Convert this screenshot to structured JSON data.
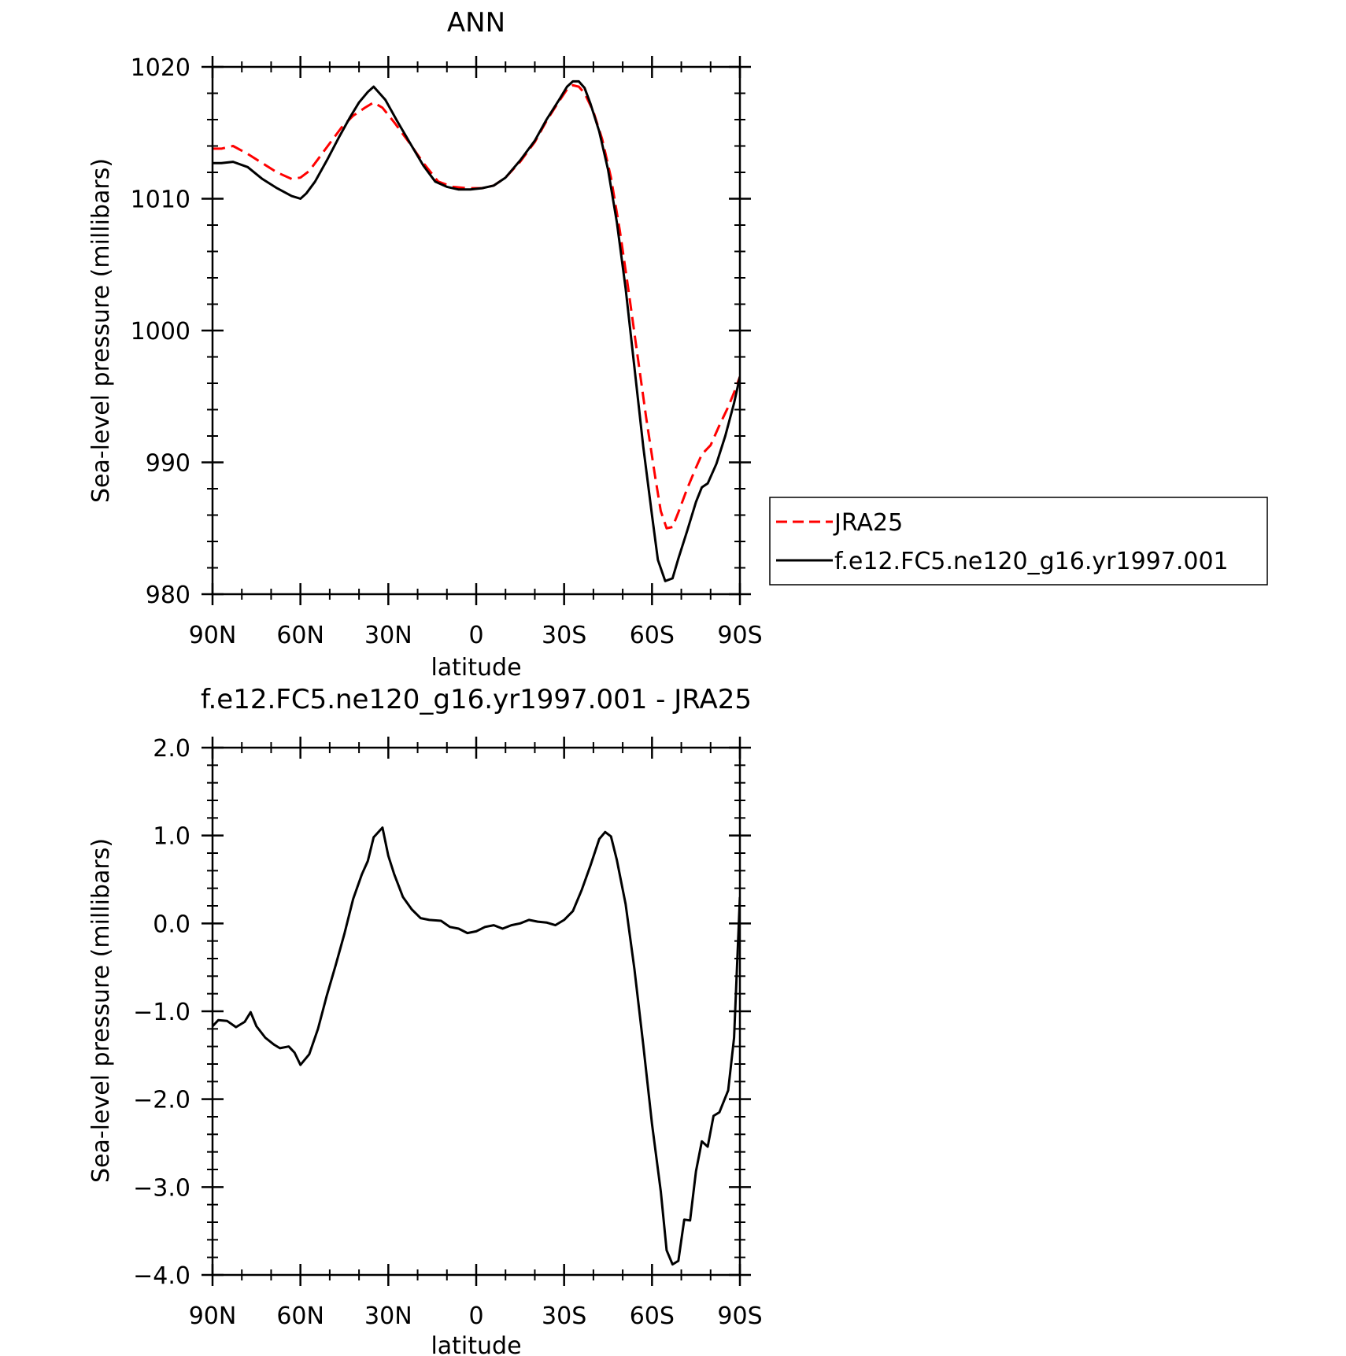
{
  "chart_data": [
    {
      "type": "line",
      "title": "ANN",
      "xlabel": "latitude",
      "ylabel": "Sea-level pressure (millibars)",
      "xlim": [
        -90,
        90
      ],
      "ylim": [
        980,
        1020
      ],
      "x_tick_values": [
        -90,
        -60,
        -30,
        0,
        30,
        60,
        90
      ],
      "x_tick_labels": [
        "90N",
        "60N",
        "30N",
        "0",
        "30S",
        "60S",
        "90S"
      ],
      "y_tick_values": [
        980,
        990,
        1000,
        1010,
        1020
      ],
      "y_tick_labels": [
        "980",
        "990",
        "1000",
        "1010",
        "1020"
      ],
      "legend_position": "right",
      "series": [
        {
          "name": "JRA25",
          "color": "#ff0000",
          "dash": "dashed",
          "points": [
            [
              -90,
              1013.8
            ],
            [
              -87,
              1013.8
            ],
            [
              -83,
              1014.0
            ],
            [
              -78,
              1013.4
            ],
            [
              -73,
              1012.7
            ],
            [
              -68,
              1012.0
            ],
            [
              -63,
              1011.5
            ],
            [
              -60,
              1011.6
            ],
            [
              -57,
              1012.1
            ],
            [
              -54,
              1013.0
            ],
            [
              -50,
              1014.2
            ],
            [
              -46,
              1015.4
            ],
            [
              -42,
              1016.3
            ],
            [
              -38,
              1016.9
            ],
            [
              -35,
              1017.3
            ],
            [
              -32,
              1016.9
            ],
            [
              -28,
              1015.8
            ],
            [
              -23,
              1014.3
            ],
            [
              -18,
              1012.7
            ],
            [
              -13,
              1011.3
            ],
            [
              -8,
              1010.9
            ],
            [
              -3,
              1010.8
            ],
            [
              2,
              1010.8
            ],
            [
              6,
              1011.0
            ],
            [
              10,
              1011.6
            ],
            [
              15,
              1012.8
            ],
            [
              20,
              1014.3
            ],
            [
              24,
              1015.9
            ],
            [
              28,
              1017.3
            ],
            [
              31,
              1018.3
            ],
            [
              33,
              1018.6
            ],
            [
              35,
              1018.5
            ],
            [
              37,
              1018.0
            ],
            [
              40,
              1016.6
            ],
            [
              43,
              1014.5
            ],
            [
              46,
              1011.6
            ],
            [
              49,
              1007.6
            ],
            [
              52,
              1003.0
            ],
            [
              55,
              998.2
            ],
            [
              58,
              993.4
            ],
            [
              61,
              989.0
            ],
            [
              63,
              986.3
            ],
            [
              65,
              985.0
            ],
            [
              67,
              985.1
            ],
            [
              69,
              986.2
            ],
            [
              72,
              988.0
            ],
            [
              75,
              989.6
            ],
            [
              77,
              990.6
            ],
            [
              80,
              991.3
            ],
            [
              83,
              992.8
            ],
            [
              86,
              994.2
            ],
            [
              88,
              995.3
            ],
            [
              90,
              996.5
            ]
          ]
        },
        {
          "name": "f.e12.FC5.ne120_g16.yr1997.001",
          "color": "#000000",
          "dash": "solid",
          "points": [
            [
              -90,
              1012.7
            ],
            [
              -87,
              1012.7
            ],
            [
              -83,
              1012.8
            ],
            [
              -78,
              1012.4
            ],
            [
              -73,
              1011.5
            ],
            [
              -68,
              1010.8
            ],
            [
              -63,
              1010.2
            ],
            [
              -60,
              1010.0
            ],
            [
              -58,
              1010.4
            ],
            [
              -55,
              1011.3
            ],
            [
              -51,
              1012.9
            ],
            [
              -47,
              1014.6
            ],
            [
              -43,
              1016.2
            ],
            [
              -40,
              1017.3
            ],
            [
              -37,
              1018.1
            ],
            [
              -35,
              1018.5
            ],
            [
              -31,
              1017.5
            ],
            [
              -27,
              1015.9
            ],
            [
              -22,
              1014.0
            ],
            [
              -18,
              1012.5
            ],
            [
              -14,
              1011.3
            ],
            [
              -10,
              1010.9
            ],
            [
              -6,
              1010.7
            ],
            [
              -2,
              1010.7
            ],
            [
              2,
              1010.8
            ],
            [
              6,
              1011.0
            ],
            [
              10,
              1011.6
            ],
            [
              15,
              1012.9
            ],
            [
              20,
              1014.4
            ],
            [
              24,
              1016.0
            ],
            [
              28,
              1017.4
            ],
            [
              31,
              1018.5
            ],
            [
              33,
              1018.9
            ],
            [
              35,
              1018.9
            ],
            [
              37,
              1018.4
            ],
            [
              39,
              1017.2
            ],
            [
              42,
              1015.1
            ],
            [
              45,
              1012.2
            ],
            [
              48,
              1008.2
            ],
            [
              51,
              1003.2
            ],
            [
              54,
              997.2
            ],
            [
              57,
              991.2
            ],
            [
              60,
              986.0
            ],
            [
              62,
              982.6
            ],
            [
              64.5,
              981.0
            ],
            [
              67,
              981.2
            ],
            [
              69,
              982.7
            ],
            [
              72,
              984.8
            ],
            [
              75,
              987.0
            ],
            [
              77,
              988.1
            ],
            [
              79,
              988.4
            ],
            [
              82,
              989.9
            ],
            [
              85,
              992.0
            ],
            [
              88,
              994.5
            ],
            [
              90,
              996.5
            ]
          ]
        }
      ]
    },
    {
      "type": "line",
      "title": "f.e12.FC5.ne120_g16.yr1997.001 - JRA25",
      "xlabel": "latitude",
      "ylabel": "Sea-level pressure (millibars)",
      "xlim": [
        -90,
        90
      ],
      "ylim": [
        -4.0,
        2.0
      ],
      "x_tick_values": [
        -90,
        -60,
        -30,
        0,
        30,
        60,
        90
      ],
      "x_tick_labels": [
        "90N",
        "60N",
        "30N",
        "0",
        "30S",
        "60S",
        "90S"
      ],
      "y_tick_values": [
        -4.0,
        -3.0,
        -2.0,
        -1.0,
        0.0,
        1.0,
        2.0
      ],
      "y_tick_labels": [
        "-4.0",
        "-3.0",
        "-2.0",
        "-1.0",
        "0.0",
        "1.0",
        "2.0"
      ],
      "series": [
        {
          "color": "#000000",
          "dash": "solid",
          "points": [
            [
              -90,
              -1.17
            ],
            [
              -88,
              -1.1
            ],
            [
              -85,
              -1.11
            ],
            [
              -82,
              -1.18
            ],
            [
              -79,
              -1.12
            ],
            [
              -77,
              -1.01
            ],
            [
              -75,
              -1.17
            ],
            [
              -72,
              -1.3
            ],
            [
              -69,
              -1.38
            ],
            [
              -67,
              -1.42
            ],
            [
              -64,
              -1.4
            ],
            [
              -62,
              -1.47
            ],
            [
              -60,
              -1.61
            ],
            [
              -57,
              -1.49
            ],
            [
              -54,
              -1.2
            ],
            [
              -51,
              -0.82
            ],
            [
              -48,
              -0.48
            ],
            [
              -45,
              -0.12
            ],
            [
              -42,
              0.28
            ],
            [
              -39,
              0.56
            ],
            [
              -37,
              0.71
            ],
            [
              -35,
              0.98
            ],
            [
              -32,
              1.09
            ],
            [
              -30,
              0.77
            ],
            [
              -28,
              0.56
            ],
            [
              -25,
              0.3
            ],
            [
              -22,
              0.16
            ],
            [
              -19,
              0.06
            ],
            [
              -16,
              0.04
            ],
            [
              -12,
              0.03
            ],
            [
              -9,
              -0.04
            ],
            [
              -6,
              -0.06
            ],
            [
              -3,
              -0.11
            ],
            [
              0,
              -0.09
            ],
            [
              3,
              -0.04
            ],
            [
              6,
              -0.02
            ],
            [
              9,
              -0.06
            ],
            [
              12,
              -0.02
            ],
            [
              15,
              0.0
            ],
            [
              18,
              0.04
            ],
            [
              21,
              0.02
            ],
            [
              24,
              0.01
            ],
            [
              27,
              -0.02
            ],
            [
              30,
              0.04
            ],
            [
              33,
              0.14
            ],
            [
              36,
              0.38
            ],
            [
              39,
              0.66
            ],
            [
              42,
              0.96
            ],
            [
              44,
              1.04
            ],
            [
              46,
              0.99
            ],
            [
              48,
              0.72
            ],
            [
              51,
              0.22
            ],
            [
              54,
              -0.52
            ],
            [
              57,
              -1.38
            ],
            [
              60,
              -2.28
            ],
            [
              63,
              -3.05
            ],
            [
              65,
              -3.72
            ],
            [
              67,
              -3.88
            ],
            [
              69,
              -3.84
            ],
            [
              71,
              -3.37
            ],
            [
              73,
              -3.38
            ],
            [
              75,
              -2.82
            ],
            [
              77,
              -2.48
            ],
            [
              79,
              -2.54
            ],
            [
              81,
              -2.19
            ],
            [
              83,
              -2.15
            ],
            [
              86,
              -1.9
            ],
            [
              88,
              -1.3
            ],
            [
              90,
              0.3
            ]
          ]
        }
      ]
    }
  ]
}
